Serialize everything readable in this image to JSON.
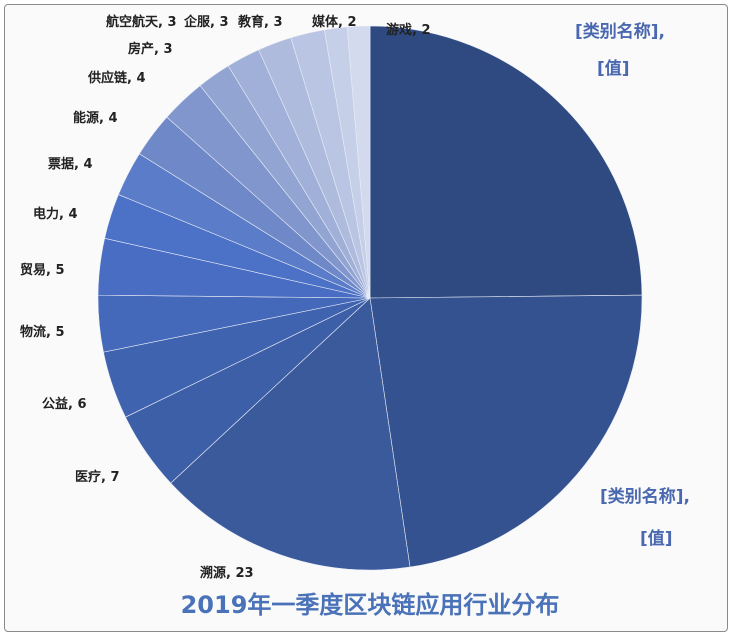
{
  "chart_data": {
    "type": "pie",
    "title": "2019年一季度区块链应用行业分布",
    "start": "12 o'clock, clockwise",
    "slices": [
      {
        "label": "[类别名称],",
        "label2": "[值]",
        "value": 37,
        "color": "#2e4a80"
      },
      {
        "label": "[类别名称],",
        "label2": "[值]",
        "value": 34,
        "color": "#34528f"
      },
      {
        "label": "溯源, 23",
        "value": 23,
        "color": "#3a5a9c"
      },
      {
        "label": "医疗, 7",
        "value": 7,
        "color": "#3d5fa8"
      },
      {
        "label": "公益, 6",
        "value": 6,
        "color": "#4063b0"
      },
      {
        "label": "物流, 5",
        "value": 5,
        "color": "#4468ba"
      },
      {
        "label": "贸易, 5",
        "value": 5,
        "color": "#486dc2"
      },
      {
        "label": "电力, 4",
        "value": 4,
        "color": "#4c72c8"
      },
      {
        "label": "票据, 4",
        "value": 4,
        "color": "#5b7cc8"
      },
      {
        "label": "能源, 4",
        "value": 4,
        "color": "#6e88c8"
      },
      {
        "label": "供应链, 4",
        "value": 4,
        "color": "#8096cc"
      },
      {
        "label": "房产, 3",
        "value": 3,
        "color": "#92a4d2"
      },
      {
        "label": "航空航天, 3",
        "value": 3,
        "color": "#a1b0d8"
      },
      {
        "label": "企服, 3",
        "value": 3,
        "color": "#aebbdd"
      },
      {
        "label": "教育, 3",
        "value": 3,
        "color": "#bac5e3"
      },
      {
        "label": "媒体, 2",
        "value": 2,
        "color": "#c6cfe8"
      },
      {
        "label": "游戏, 2",
        "value": 2,
        "color": "#d3daee"
      }
    ]
  }
}
